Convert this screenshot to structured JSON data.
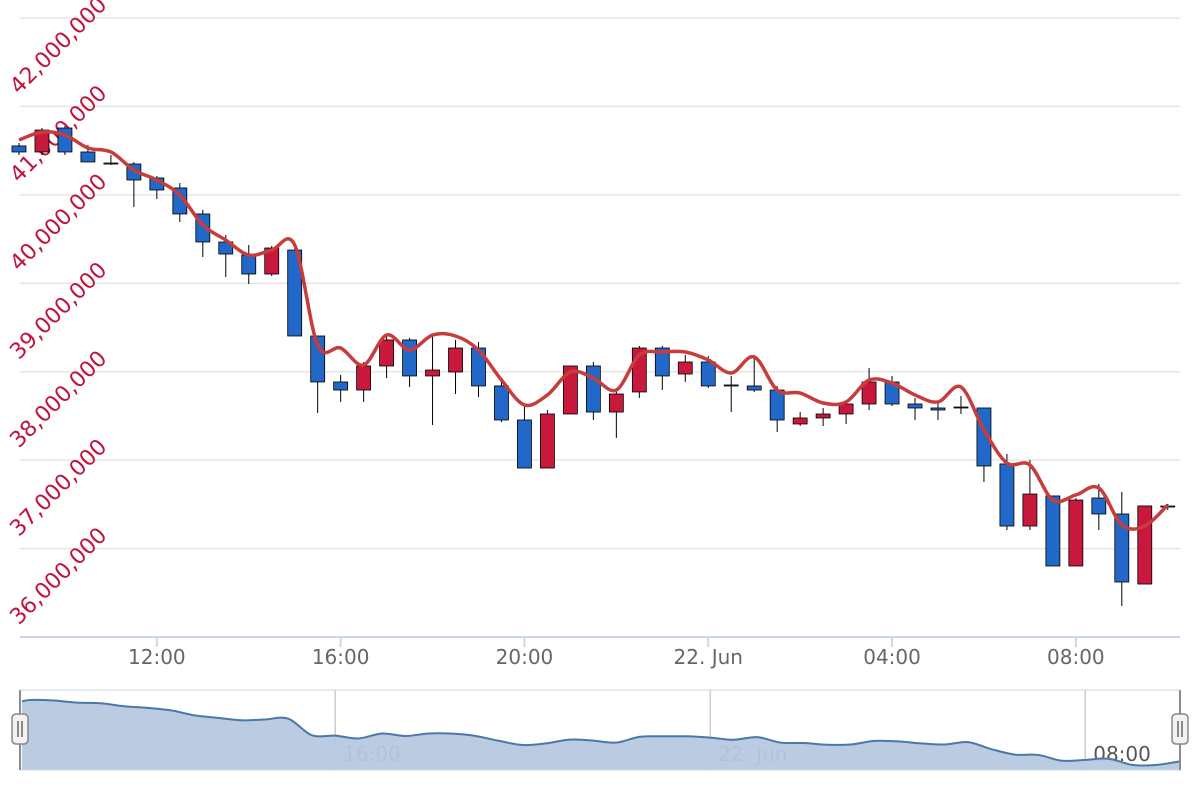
{
  "chart_data": {
    "type": "candlestick",
    "categories": [
      null,
      null,
      null,
      null,
      null,
      null,
      "12:00",
      null,
      null,
      null,
      null,
      null,
      null,
      null,
      "16:00",
      null,
      null,
      null,
      null,
      null,
      null,
      null,
      "20:00",
      null,
      null,
      null,
      null,
      null,
      null,
      null,
      "22. Jun",
      null,
      null,
      null,
      null,
      null,
      null,
      null,
      "04:00",
      null,
      null,
      null,
      null,
      null,
      null,
      null,
      "08:00",
      null,
      null,
      null,
      null
    ],
    "ylim": [
      35000000,
      42000000
    ],
    "yticks": [
      {
        "value": 36000000,
        "label": "36,000,000"
      },
      {
        "value": 37000000,
        "label": "37,000,000"
      },
      {
        "value": 38000000,
        "label": "38,000,000"
      },
      {
        "value": 39000000,
        "label": "39,000,000"
      },
      {
        "value": 40000000,
        "label": "40,000,000"
      },
      {
        "value": 41000000,
        "label": "41,000,000"
      },
      {
        "value": 42000000,
        "label": "42,000,000"
      }
    ],
    "grid": true,
    "series": [
      {
        "type": "candlestick",
        "up_color": "#c8193c",
        "down_color": "#2168c8",
        "open": [
          40553000,
          40485000,
          40756000,
          40485000,
          40360000,
          40349000,
          40191000,
          40078000,
          39784000,
          39467000,
          39320000,
          39105000,
          39376000,
          38404000,
          37884000,
          37793000,
          38065000,
          38359000,
          37952000,
          37997000,
          38268000,
          37839000,
          37454000,
          36911000,
          37522000,
          38065000,
          37544000,
          37771000,
          38268000,
          37974000,
          38110000,
          37850000,
          37839000,
          37793000,
          37409000,
          37477000,
          37522000,
          37635000,
          37884000,
          37635000,
          37590000,
          37590000,
          37590000,
          36957000,
          36255000,
          36595000,
          35803000,
          36572000,
          36391000,
          35599000,
          36470000
        ],
        "high": [
          40586000,
          40756000,
          40779000,
          40564000,
          40451000,
          40372000,
          40213000,
          40134000,
          39829000,
          39546000,
          39433000,
          39422000,
          39433000,
          38404000,
          37963000,
          38110000,
          38404000,
          38381000,
          38415000,
          38359000,
          38336000,
          37884000,
          37635000,
          37567000,
          38065000,
          38110000,
          37793000,
          38291000,
          38291000,
          38189000,
          38178000,
          37952000,
          38178000,
          37839000,
          37544000,
          37590000,
          37681000,
          38042000,
          37952000,
          37703000,
          37658000,
          37726000,
          37590000,
          37070000,
          37002000,
          36595000,
          36572000,
          36730000,
          36640000,
          36482000,
          36504000
        ],
        "low": [
          40451000,
          40451000,
          40451000,
          40372000,
          40338000,
          39863000,
          39953000,
          39693000,
          39297000,
          39071000,
          38992000,
          39082000,
          38404000,
          37533000,
          37658000,
          37658000,
          37929000,
          37827000,
          37398000,
          37748000,
          37714000,
          37431000,
          36911000,
          36911000,
          37522000,
          37454000,
          37251000,
          37703000,
          37793000,
          37884000,
          37816000,
          37544000,
          37771000,
          37318000,
          37386000,
          37386000,
          37409000,
          37567000,
          37612000,
          37454000,
          37454000,
          37522000,
          36753000,
          36210000,
          36210000,
          35803000,
          35803000,
          36210000,
          35351000,
          35599000,
          36436000
        ],
        "close": [
          40485000,
          40733000,
          40485000,
          40372000,
          40349000,
          40168000,
          40055000,
          39784000,
          39467000,
          39331000,
          39105000,
          39399000,
          38404000,
          37884000,
          37793000,
          38065000,
          38359000,
          37952000,
          38019000,
          38268000,
          37839000,
          37454000,
          36911000,
          37522000,
          38065000,
          37544000,
          37748000,
          38268000,
          37952000,
          38110000,
          37839000,
          37839000,
          37793000,
          37454000,
          37477000,
          37522000,
          37635000,
          37884000,
          37635000,
          37590000,
          37567000,
          37601000,
          36934000,
          36255000,
          36617000,
          35803000,
          36549000,
          36391000,
          35622000,
          36482000,
          36481000
        ]
      },
      {
        "type": "line",
        "color": "#c83c3c",
        "values": [
          40620000,
          40711000,
          40677000,
          40530000,
          40485000,
          40281000,
          40168000,
          39998000,
          39659000,
          39489000,
          39320000,
          39376000,
          39433000,
          38302000,
          38268000,
          38076000,
          38415000,
          38246000,
          38415000,
          38404000,
          38246000,
          37906000,
          37624000,
          37737000,
          37997000,
          37929000,
          37793000,
          38189000,
          38223000,
          38223000,
          38133000,
          37986000,
          38167000,
          37793000,
          37759000,
          37646000,
          37658000,
          37906000,
          37872000,
          37737000,
          37658000,
          37827000,
          37341000,
          36968000,
          36945000,
          36549000,
          36606000,
          36685000,
          36267000,
          36255000,
          36493000
        ]
      }
    ],
    "navigator": {
      "fill": "#b6c8e0",
      "line_color": "#4a78a8"
    }
  }
}
